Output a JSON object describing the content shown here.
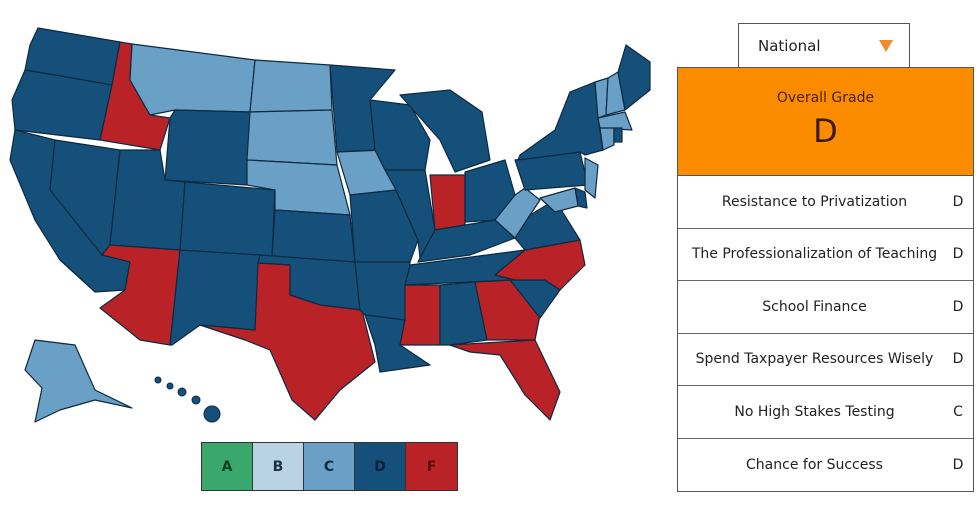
{
  "legend": {
    "grades": [
      {
        "label": "A",
        "color": "#3aa76d"
      },
      {
        "label": "B",
        "color": "#b9d3e5"
      },
      {
        "label": "C",
        "color": "#6a9fc6"
      },
      {
        "label": "D",
        "color": "#15507a"
      },
      {
        "label": "F",
        "color": "#b92327"
      }
    ]
  },
  "map": {
    "state_grades": {
      "WA": "D",
      "OR": "D",
      "CA": "D",
      "NV": "D",
      "ID": "F",
      "MT": "C",
      "WY": "D",
      "UT": "D",
      "AZ": "F",
      "CO": "D",
      "NM": "D",
      "ND": "C",
      "SD": "C",
      "NE": "C",
      "KS": "D",
      "OK": "D",
      "TX": "F",
      "MN": "D",
      "IA": "C",
      "MO": "D",
      "AR": "D",
      "LA": "D",
      "WI": "D",
      "IL": "D",
      "MI": "D",
      "IN": "F",
      "OH": "D",
      "KY": "D",
      "TN": "D",
      "MS": "F",
      "AL": "D",
      "GA": "F",
      "FL": "F",
      "SC": "D",
      "NC": "F",
      "VA": "D",
      "WV": "C",
      "PA": "D",
      "NY": "D",
      "VT": "C",
      "NH": "C",
      "ME": "D",
      "MA": "C",
      "CT": "C",
      "RI": "D",
      "NJ": "C",
      "DE": "D",
      "MD": "C",
      "AK": "C",
      "HI": "D"
    }
  },
  "selector": {
    "value": "National",
    "icon": "triangle-down-icon",
    "accent": "#f08a2a"
  },
  "overall": {
    "label": "Overall Grade",
    "grade": "D",
    "color": "#fb8c00"
  },
  "categories": [
    {
      "name": "Resistance to Privatization",
      "grade": "D"
    },
    {
      "name": "The Professionalization of Teaching",
      "grade": "D"
    },
    {
      "name": "School Finance",
      "grade": "D"
    },
    {
      "name": "Spend Taxpayer Resources Wisely",
      "grade": "D"
    },
    {
      "name": "No High Stakes Testing",
      "grade": "C"
    },
    {
      "name": "Chance for Success",
      "grade": "D"
    }
  ]
}
